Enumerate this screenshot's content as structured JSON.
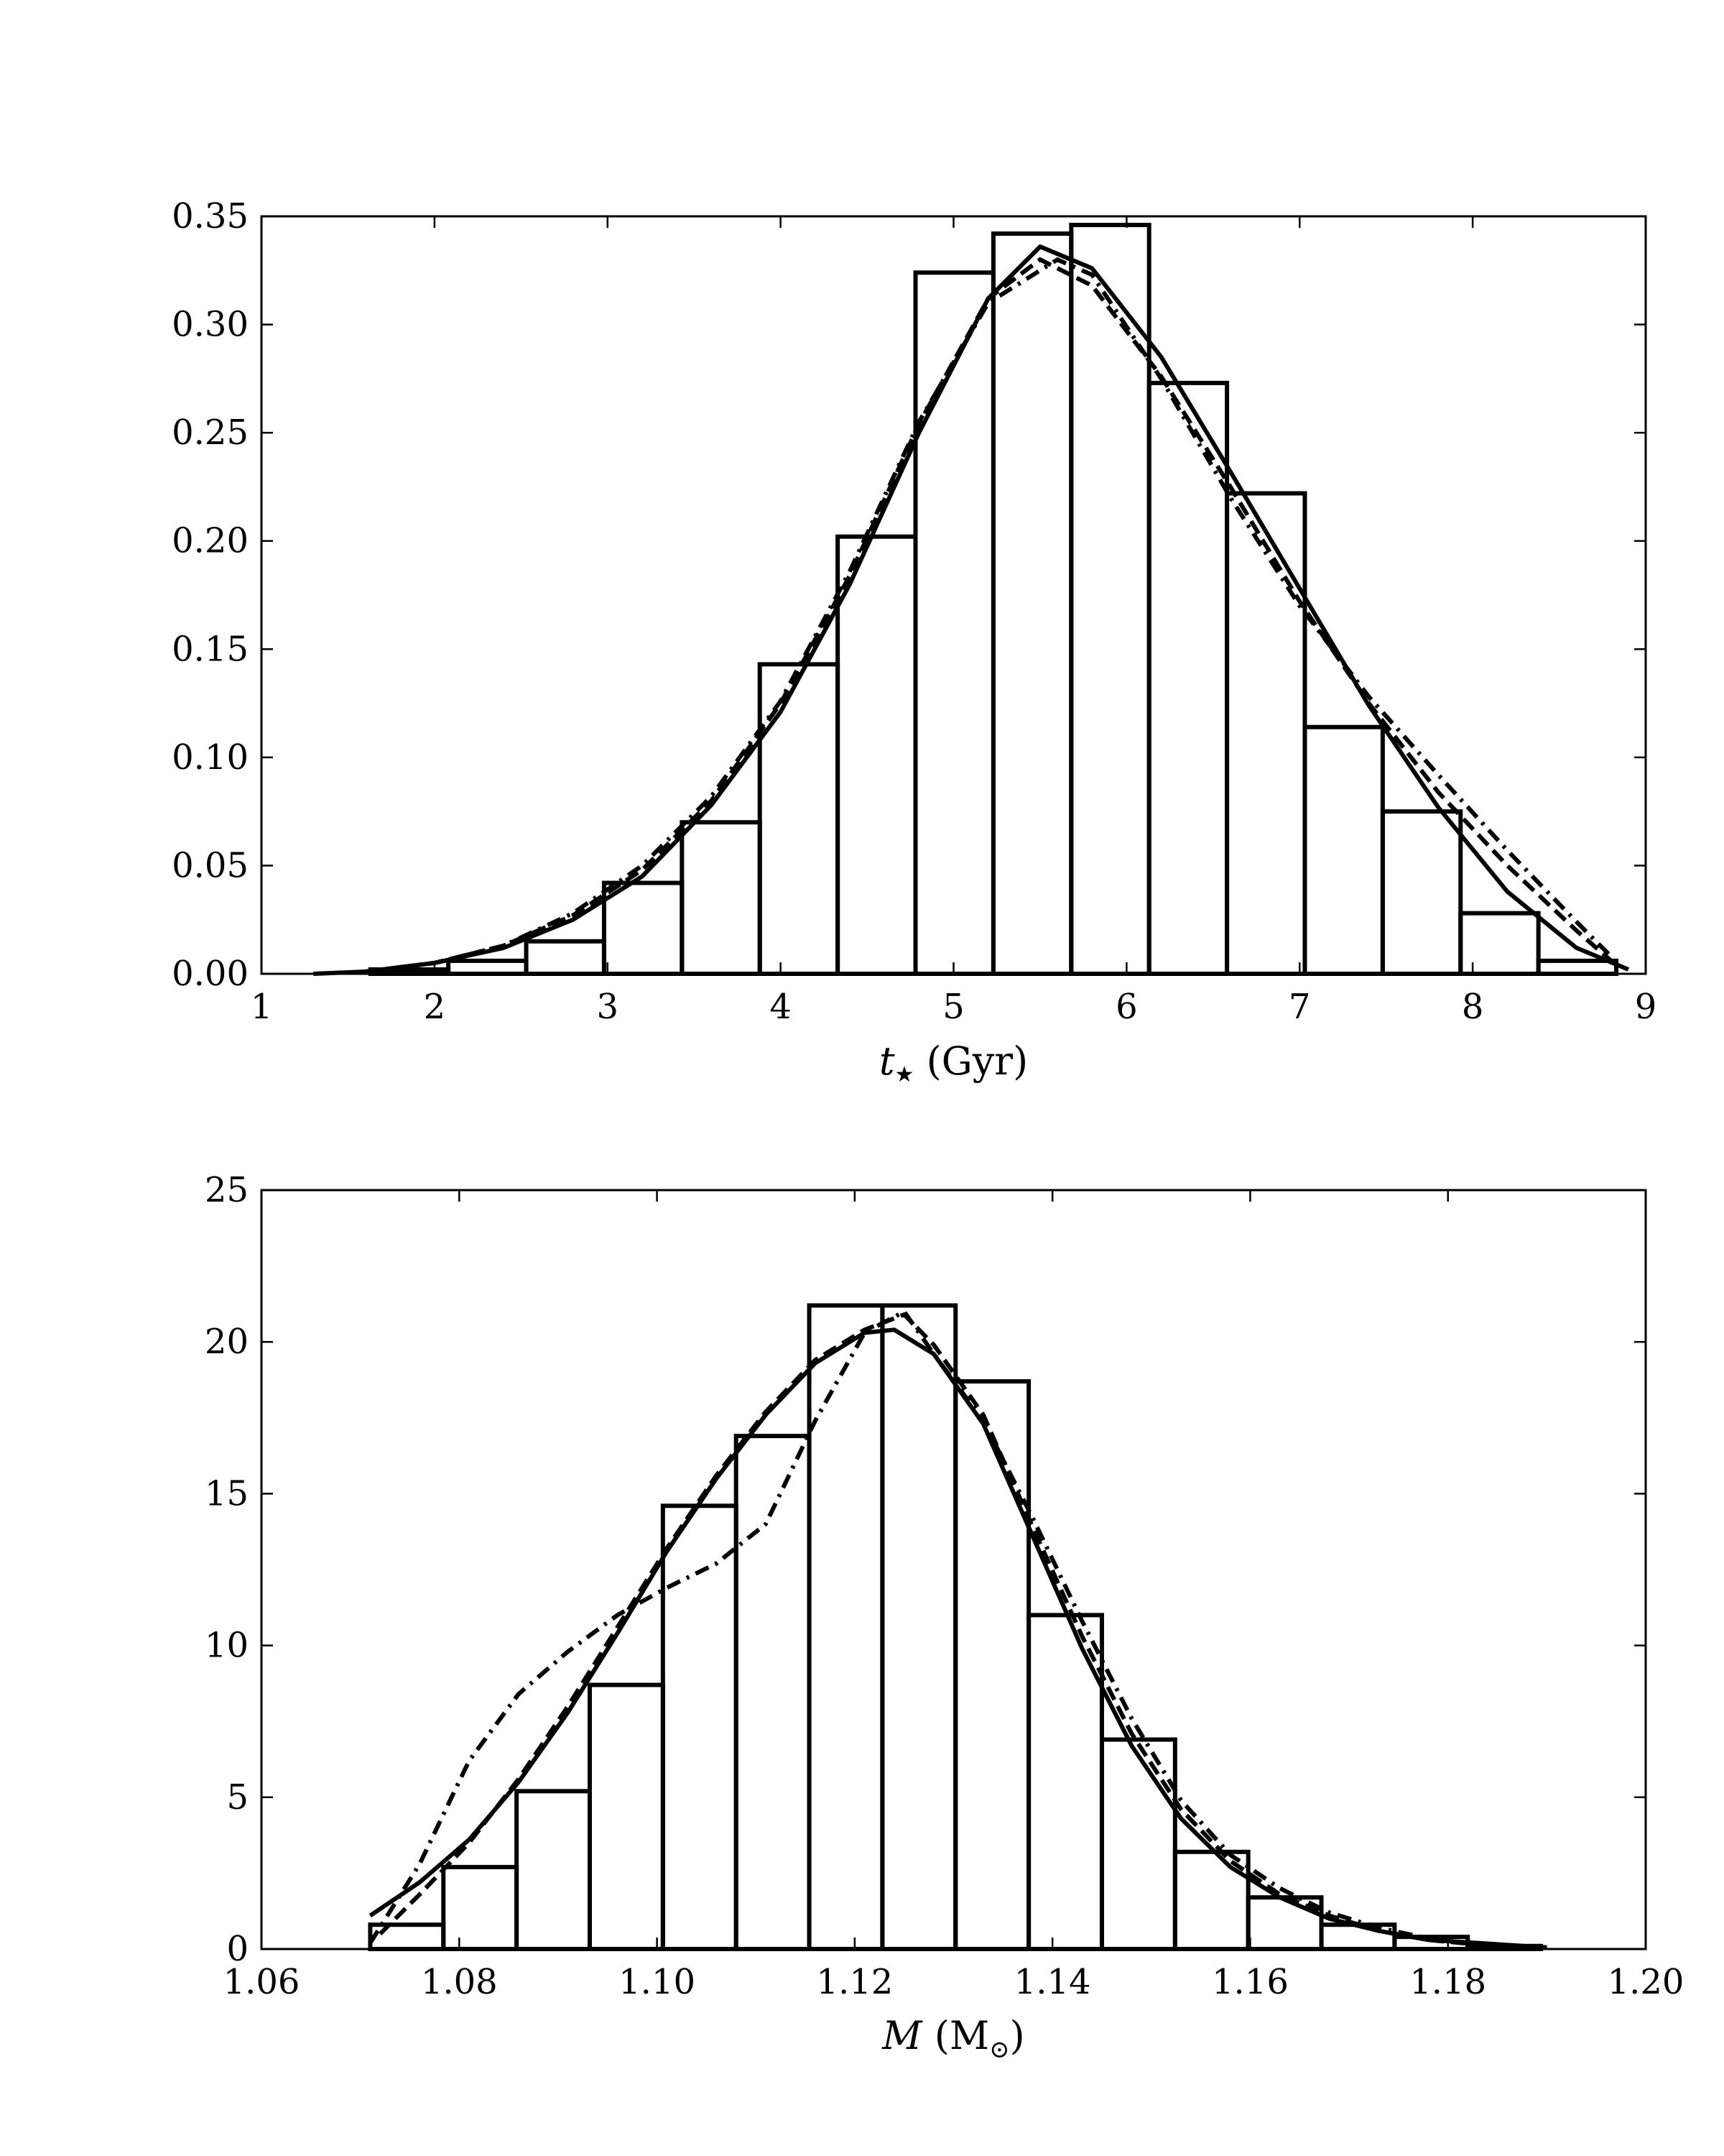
{
  "chart_data": [
    {
      "type": "bar",
      "panel": "top",
      "xlabel_italic": "t",
      "xlabel_sub": "★",
      "xlabel_unit": " (Gyr)",
      "xlim": [
        1,
        9
      ],
      "ylim": [
        0,
        0.35
      ],
      "xticks": [
        1,
        2,
        3,
        4,
        5,
        6,
        7,
        8,
        9
      ],
      "xtick_labels": [
        "1",
        "2",
        "3",
        "4",
        "5",
        "6",
        "7",
        "8",
        "9"
      ],
      "yticks": [
        0,
        0.05,
        0.1,
        0.15,
        0.2,
        0.25,
        0.3,
        0.35
      ],
      "ytick_labels": [
        "0.00",
        "0.05",
        "0.10",
        "0.15",
        "0.20",
        "0.25",
        "0.30",
        "0.35"
      ],
      "grid": false,
      "histogram": {
        "bin_edges": [
          1.63,
          2.08,
          2.53,
          2.98,
          3.43,
          3.88,
          4.33,
          4.78,
          5.23,
          5.68,
          6.13,
          6.58,
          7.03,
          7.48,
          7.93,
          8.38,
          8.83
        ],
        "values": [
          0.002,
          0.006,
          0.015,
          0.042,
          0.07,
          0.143,
          0.202,
          0.324,
          0.342,
          0.346,
          0.273,
          0.222,
          0.114,
          0.075,
          0.028,
          0.006
        ]
      },
      "series": [
        {
          "style": "solid",
          "x": [
            1.3,
            1.6,
            2.0,
            2.4,
            2.8,
            3.2,
            3.6,
            4.0,
            4.4,
            4.8,
            5.2,
            5.5,
            5.8,
            6.2,
            6.6,
            7.0,
            7.4,
            7.8,
            8.2,
            8.6,
            8.9
          ],
          "y": [
            0.0,
            0.001,
            0.005,
            0.012,
            0.025,
            0.045,
            0.078,
            0.121,
            0.18,
            0.25,
            0.312,
            0.336,
            0.326,
            0.285,
            0.232,
            0.178,
            0.124,
            0.077,
            0.038,
            0.012,
            0.002
          ]
        },
        {
          "style": "dashed",
          "x": [
            1.6,
            2.0,
            2.4,
            2.8,
            3.2,
            3.6,
            4.0,
            4.4,
            4.8,
            5.2,
            5.5,
            5.8,
            6.2,
            6.6,
            7.0,
            7.4,
            7.8,
            8.2,
            8.6,
            8.8
          ],
          "y": [
            0.001,
            0.005,
            0.013,
            0.027,
            0.048,
            0.08,
            0.125,
            0.184,
            0.254,
            0.312,
            0.33,
            0.318,
            0.276,
            0.225,
            0.172,
            0.125,
            0.084,
            0.05,
            0.02,
            0.006
          ]
        },
        {
          "style": "dashdot",
          "x": [
            1.6,
            2.0,
            2.4,
            2.8,
            3.2,
            3.6,
            4.0,
            4.4,
            4.8,
            5.2,
            5.6,
            5.8,
            6.2,
            6.6,
            7.0,
            7.4,
            7.8,
            8.2,
            8.6,
            8.8
          ],
          "y": [
            0.001,
            0.005,
            0.013,
            0.028,
            0.05,
            0.082,
            0.126,
            0.186,
            0.255,
            0.31,
            0.33,
            0.323,
            0.275,
            0.22,
            0.17,
            0.128,
            0.092,
            0.057,
            0.024,
            0.008
          ]
        }
      ]
    },
    {
      "type": "bar",
      "panel": "bottom",
      "xlabel_italic": "M",
      "xlabel_unit": " (M",
      "xlabel_sub": "⊙",
      "xlabel_close": ")",
      "xlim": [
        1.06,
        1.2
      ],
      "ylim": [
        0,
        25
      ],
      "xticks": [
        1.06,
        1.08,
        1.1,
        1.12,
        1.14,
        1.16,
        1.18,
        1.2
      ],
      "xtick_labels": [
        "1.06",
        "1.08",
        "1.10",
        "1.12",
        "1.14",
        "1.16",
        "1.18",
        "1.20"
      ],
      "yticks": [
        0,
        5,
        10,
        15,
        20,
        25
      ],
      "ytick_labels": [
        "0",
        "5",
        "10",
        "15",
        "20",
        "25"
      ],
      "grid": false,
      "histogram": {
        "bin_edges": [
          1.071,
          1.0784,
          1.0858,
          1.0932,
          1.1006,
          1.108,
          1.1154,
          1.1228,
          1.1302,
          1.1376,
          1.145,
          1.1524,
          1.1598,
          1.1672,
          1.1746,
          1.182,
          1.1894
        ],
        "values": [
          0.8,
          2.7,
          5.2,
          8.7,
          14.6,
          16.9,
          21.2,
          21.2,
          18.7,
          11.0,
          6.9,
          3.2,
          1.7,
          0.8,
          0.4,
          0.1
        ]
      },
      "series": [
        {
          "style": "solid",
          "x": [
            1.071,
            1.076,
            1.081,
            1.086,
            1.091,
            1.096,
            1.101,
            1.106,
            1.111,
            1.116,
            1.121,
            1.124,
            1.128,
            1.133,
            1.138,
            1.143,
            1.148,
            1.153,
            1.158,
            1.163,
            1.168,
            1.173,
            1.178,
            1.183,
            1.19
          ],
          "y": [
            1.1,
            2.2,
            3.6,
            5.5,
            7.8,
            10.4,
            13.1,
            15.5,
            17.6,
            19.3,
            20.3,
            20.4,
            19.6,
            17.3,
            13.6,
            9.9,
            6.7,
            4.3,
            2.7,
            1.7,
            1.0,
            0.6,
            0.3,
            0.2,
            0.05
          ]
        },
        {
          "style": "dashed",
          "x": [
            1.072,
            1.076,
            1.081,
            1.086,
            1.091,
            1.096,
            1.101,
            1.106,
            1.111,
            1.116,
            1.121,
            1.125,
            1.128,
            1.133,
            1.138,
            1.143,
            1.148,
            1.153,
            1.158,
            1.163,
            1.168,
            1.173,
            1.178,
            1.183,
            1.19
          ],
          "y": [
            0.5,
            1.8,
            3.5,
            5.6,
            8.0,
            10.6,
            13.2,
            15.6,
            17.7,
            19.4,
            20.4,
            20.9,
            19.9,
            17.6,
            13.9,
            10.3,
            7.1,
            4.6,
            2.9,
            1.8,
            1.1,
            0.6,
            0.3,
            0.15,
            0.05
          ]
        },
        {
          "style": "dashdot",
          "x": [
            1.071,
            1.076,
            1.081,
            1.086,
            1.091,
            1.096,
            1.101,
            1.106,
            1.111,
            1.116,
            1.121,
            1.125,
            1.128,
            1.133,
            1.138,
            1.143,
            1.148,
            1.153,
            1.158,
            1.163,
            1.168,
            1.173,
            1.178,
            1.183,
            1.19
          ],
          "y": [
            0.2,
            2.8,
            6.2,
            8.4,
            9.8,
            11.0,
            11.9,
            12.7,
            14.0,
            17.4,
            20.3,
            21.0,
            19.6,
            17.4,
            14.2,
            10.8,
            7.6,
            4.9,
            3.1,
            2.0,
            1.2,
            0.7,
            0.35,
            0.15,
            0.05
          ]
        }
      ]
    }
  ]
}
